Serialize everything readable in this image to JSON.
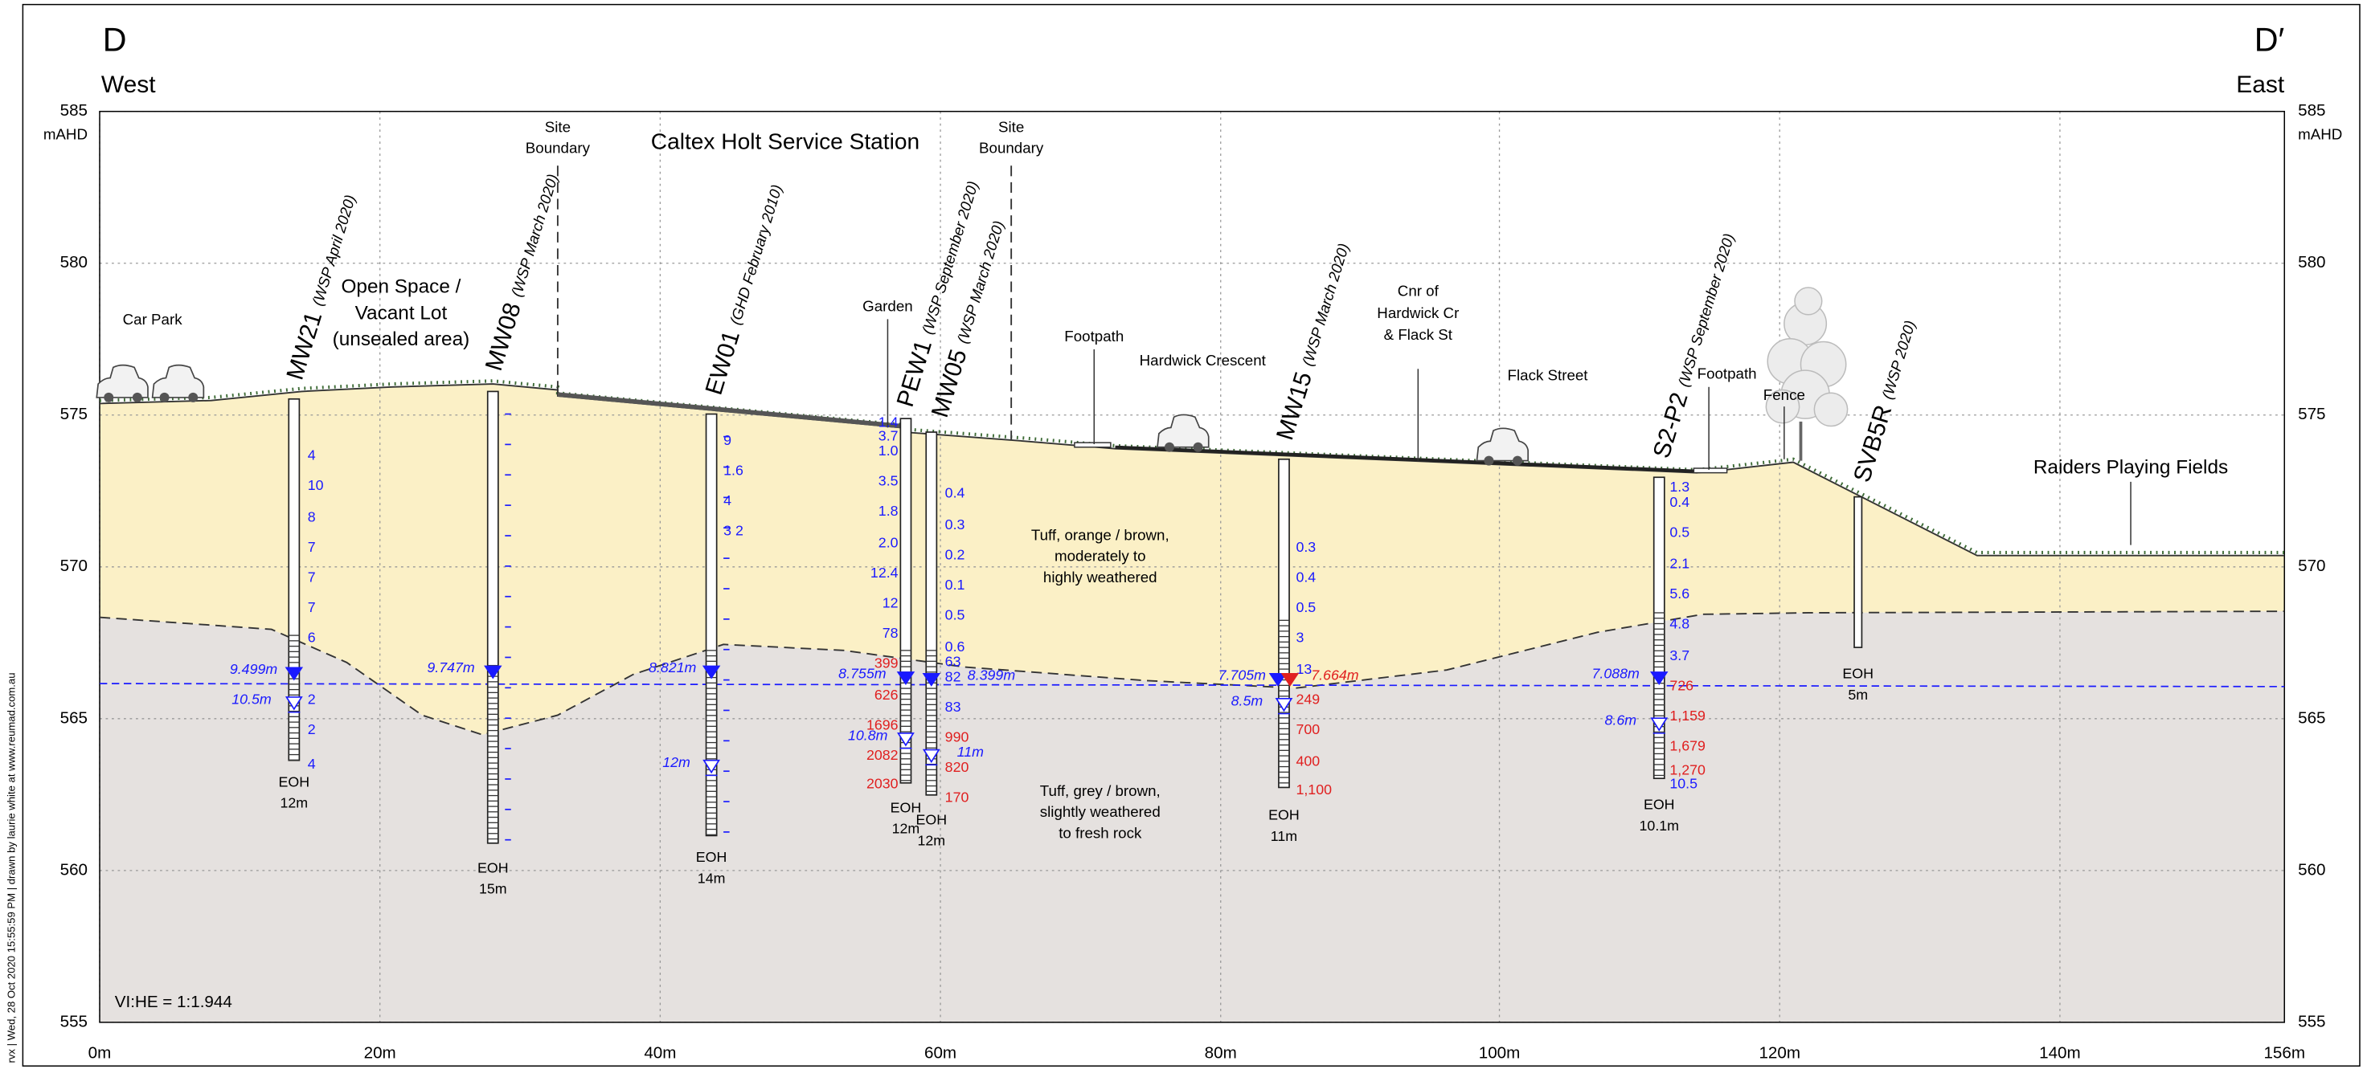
{
  "header": {
    "left_section": "D",
    "right_section": "D′",
    "left_direction": "West",
    "right_direction": "East"
  },
  "axes": {
    "elevation_unit": "mAHD",
    "elevation_ticks": [
      585,
      580,
      575,
      570,
      565,
      560,
      555
    ],
    "distance_ticks": [
      "0m",
      "20m",
      "40m",
      "60m",
      "80m",
      "100m",
      "120m",
      "140m",
      "156m"
    ]
  },
  "title": "Caltex Holt Service Station",
  "labels": {
    "car_park": "Car Park",
    "open_space": [
      "Open Space /",
      "Vacant Lot",
      "(unsealed area)"
    ],
    "site_boundary_west": [
      "Site",
      "Boundary"
    ],
    "site_boundary_east": [
      "Site",
      "Boundary"
    ],
    "garden": "Garden",
    "footpath_west": "Footpath",
    "hardwick_crescent": "Hardwick Crescent",
    "corner": [
      "Cnr of",
      "Hardwick Cr",
      "& Flack St"
    ],
    "flack_street": "Flack Street",
    "footpath_east": "Footpath",
    "fence": "Fence",
    "playing_fields": "Raiders Playing Fields"
  },
  "strata": {
    "upper": [
      "Tuff, orange / brown,",
      "moderately to",
      "highly weathered"
    ],
    "lower": [
      "Tuff, grey / brown,",
      "slightly weathered",
      "to fresh rock"
    ]
  },
  "scale_ratio": "VI:HE = 1:1.944",
  "footer": "rvx  |  Wed, 28 Oct 2020  15:55:59 PM  |  drawn by laurie white at www.reumad.com.au",
  "boreholes": [
    {
      "name": "MW21",
      "source": "(WSP April 2020)",
      "readings": [
        "4",
        "10",
        "8",
        "7",
        "7",
        "7",
        "6",
        "2",
        "2",
        "4"
      ],
      "readings_elevated": [],
      "water_levels": [
        "9.499m",
        "10.5m"
      ],
      "eoh_label": "EOH",
      "eoh_depth": "12m"
    },
    {
      "name": "MW08",
      "source": "(WSP March 2020)",
      "readings": [],
      "readings_elevated": [],
      "water_levels": [
        "9.747m"
      ],
      "eoh_label": "EOH",
      "eoh_depth": "15m"
    },
    {
      "name": "EW01",
      "source": "(GHD February 2010)",
      "readings": [
        "9",
        "1.6",
        "4",
        "3 2"
      ],
      "readings_elevated": [],
      "water_levels": [
        "8.821m",
        "12m"
      ],
      "eoh_label": "EOH",
      "eoh_depth": "14m"
    },
    {
      "name": "PEW1",
      "source": "(WSP September 2020)",
      "readings": [
        "1.4",
        "3.7",
        "1.0",
        "3.5",
        "1.8",
        "2.0",
        "12.4",
        "12",
        "78"
      ],
      "readings_elevated": [
        "399",
        "626",
        "1696",
        "2082",
        "2030"
      ],
      "water_levels": [
        "8.755m",
        "10.8m"
      ],
      "eoh_label": "EOH",
      "eoh_depth": "12m"
    },
    {
      "name": "MW05",
      "source": "(WSP March 2020)",
      "readings": [
        "0.4",
        "0.3",
        "0.2",
        "0.1",
        "0.5",
        "0.6",
        "63",
        "82",
        "83"
      ],
      "readings_elevated": [
        "990",
        "820",
        "170"
      ],
      "water_levels": [
        "8.399m",
        "11m"
      ],
      "eoh_label": "EOH",
      "eoh_depth": "12m"
    },
    {
      "name": "MW15",
      "source": "(WSP March 2020)",
      "readings": [
        "0.3",
        "0.4",
        "0.5",
        "3",
        "13"
      ],
      "readings_elevated": [
        "249",
        "700",
        "400",
        "1,100"
      ],
      "water_levels": [
        "7.705m",
        "7.664m",
        "8.5m"
      ],
      "eoh_label": "EOH",
      "eoh_depth": "11m"
    },
    {
      "name": "S2-P2",
      "source": "(WSP September 2020)",
      "readings": [
        "1.3",
        "0.4",
        "0.5",
        "2.1",
        "5.6",
        "4.8",
        "3.7",
        "10.5"
      ],
      "readings_elevated": [
        "726",
        "1,159",
        "1,679",
        "1,270"
      ],
      "water_levels": [
        "7.088m",
        "8.6m"
      ],
      "eoh_label": "EOH",
      "eoh_depth": "10.1m"
    },
    {
      "name": "SVB5R",
      "source": "(WSP 2020)",
      "readings": [],
      "readings_elevated": [],
      "water_levels": [],
      "eoh_label": "EOH",
      "eoh_depth": "5m"
    }
  ]
}
